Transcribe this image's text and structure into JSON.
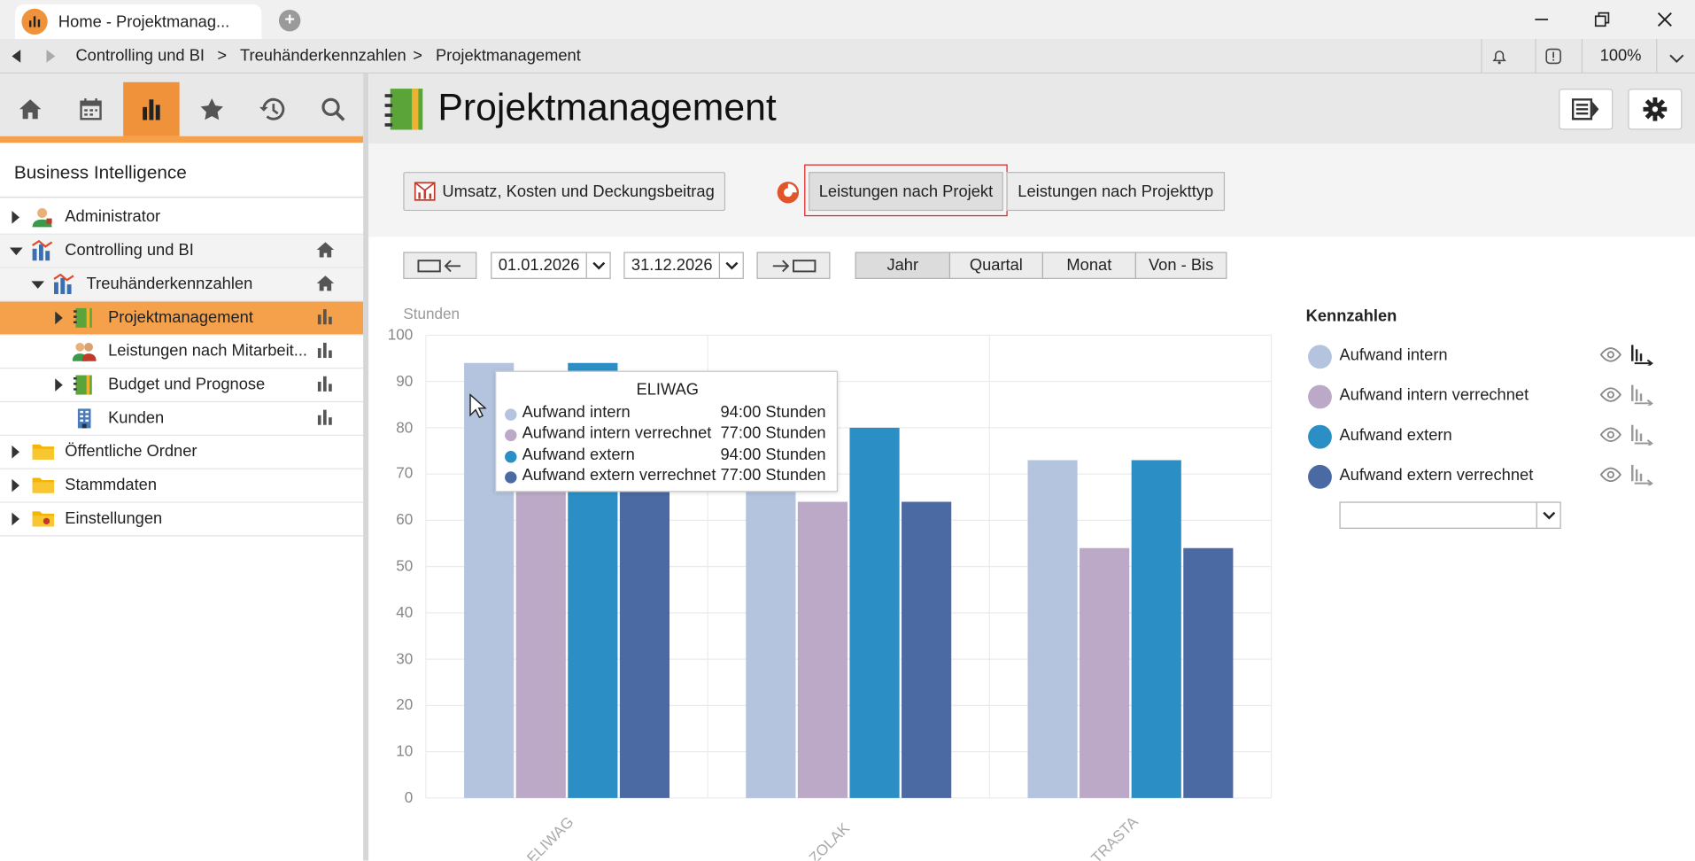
{
  "window": {
    "tab_title": "Home - Projektmanag...",
    "zoom": "100%"
  },
  "breadcrumb": [
    "Controlling und BI",
    "Treuhänderkennzahlen",
    "Projektmanagement"
  ],
  "breadcrumb_separator": ">",
  "sidebar": {
    "nav_icons": [
      "home-icon",
      "calendar-icon",
      "chart-icon",
      "star-icon",
      "history-icon",
      "search-icon"
    ],
    "active_nav": "chart-icon",
    "title": "Business Intelligence",
    "tree": [
      {
        "label": "Administrator",
        "level": 0,
        "expander": "collapsed",
        "icon": "admin-user-icon",
        "right_icon": null,
        "selected": false
      },
      {
        "label": "Controlling und BI",
        "level": 0,
        "expander": "expanded",
        "icon": "bi-chart-icon",
        "right_icon": "home-icon",
        "selected": false
      },
      {
        "label": "Treuhänderkennzahlen",
        "level": 1,
        "expander": "expanded",
        "icon": "bi-chart-icon",
        "right_icon": "home-icon",
        "selected": false
      },
      {
        "label": "Projektmanagement",
        "level": 2,
        "expander": "collapsed",
        "icon": "notebook-icon",
        "right_icon": "bar-chart-icon",
        "selected": true
      },
      {
        "label": "Leistungen nach Mitarbeit...",
        "level": 2,
        "expander": null,
        "icon": "people-icon",
        "right_icon": "bar-chart-icon",
        "selected": false
      },
      {
        "label": "Budget und Prognose",
        "level": 2,
        "expander": "collapsed",
        "icon": "notebook-icon",
        "right_icon": "bar-chart-icon",
        "selected": false
      },
      {
        "label": "Kunden",
        "level": 2,
        "expander": null,
        "icon": "building-icon",
        "right_icon": "bar-chart-icon",
        "selected": false
      },
      {
        "label": "Öffentliche Ordner",
        "level": 0,
        "expander": "collapsed",
        "icon": "folder-icon",
        "right_icon": null,
        "selected": false
      },
      {
        "label": "Stammdaten",
        "level": 0,
        "expander": "collapsed",
        "icon": "folder-icon",
        "right_icon": null,
        "selected": false
      },
      {
        "label": "Einstellungen",
        "level": 0,
        "expander": "collapsed",
        "icon": "settings-folder-icon",
        "right_icon": null,
        "selected": false
      }
    ]
  },
  "main": {
    "title": "Projektmanagement",
    "report_tabs": [
      {
        "label": "Umsatz, Kosten und Deckungsbeitrag",
        "active": false
      },
      {
        "label": "Leistungen nach Projekt",
        "active": true
      },
      {
        "label": "Leistungen nach Projekttyp",
        "active": false
      }
    ],
    "date_from": "01.01.2026",
    "date_to": "31.12.2026",
    "period_options": [
      {
        "label": "Jahr",
        "active": true
      },
      {
        "label": "Quartal",
        "active": false
      },
      {
        "label": "Monat",
        "active": false
      },
      {
        "label": "Von - Bis",
        "active": false
      }
    ]
  },
  "chart_data": {
    "type": "bar",
    "ylabel": "Stunden",
    "ylim": [
      0,
      100
    ],
    "yticks": [
      0,
      10,
      20,
      30,
      40,
      50,
      60,
      70,
      80,
      90,
      100
    ],
    "categories": [
      "ELIWAG",
      "ZOLAK",
      "TRASTA"
    ],
    "series": [
      {
        "name": "Aufwand intern",
        "color": "#b4c4de",
        "values": [
          94,
          75,
          73
        ]
      },
      {
        "name": "Aufwand intern verrechnet",
        "color": "#bba9c7",
        "values": [
          77,
          64,
          54
        ]
      },
      {
        "name": "Aufwand extern",
        "color": "#2b8ec4",
        "values": [
          94,
          80,
          73
        ]
      },
      {
        "name": "Aufwand extern verrechnet",
        "color": "#4b6aa3",
        "values": [
          77,
          64,
          54
        ]
      }
    ],
    "grid": true
  },
  "tooltip": {
    "title": "ELIWAG",
    "rows": [
      {
        "name": "Aufwand intern",
        "value": "94:00 Stunden",
        "color": "#b4c4de"
      },
      {
        "name": "Aufwand intern verrechnet",
        "value": "77:00 Stunden",
        "color": "#bba9c7"
      },
      {
        "name": "Aufwand extern",
        "value": "94:00 Stunden",
        "color": "#2b8ec4"
      },
      {
        "name": "Aufwand extern verrechnet",
        "value": "77:00 Stunden",
        "color": "#4b6aa3"
      }
    ]
  },
  "kennzahlen": {
    "title": "Kennzahlen",
    "items": [
      {
        "label": "Aufwand intern",
        "color": "#b4c4de"
      },
      {
        "label": "Aufwand intern verrechnet",
        "color": "#bba9c7"
      },
      {
        "label": "Aufwand extern",
        "color": "#2b8ec4"
      },
      {
        "label": "Aufwand extern verrechnet",
        "color": "#4b6aa3"
      }
    ],
    "select_value": ""
  }
}
